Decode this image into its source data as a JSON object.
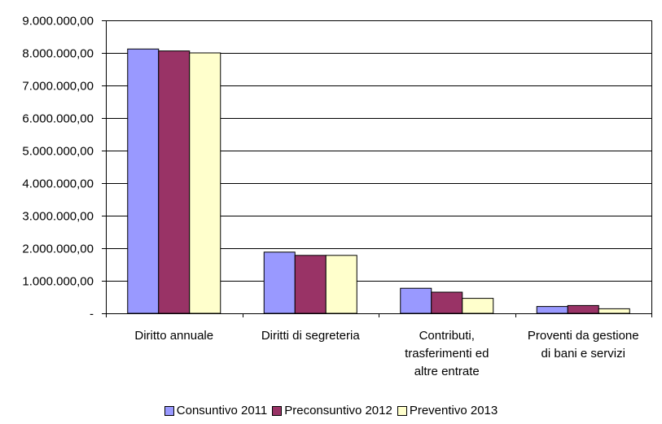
{
  "chart_data": {
    "type": "bar",
    "title": "",
    "xlabel": "",
    "ylabel": "",
    "categories": [
      [
        "Diritto annuale"
      ],
      [
        "Diritti di segreteria"
      ],
      [
        "Contributi,",
        "trasferimenti ed",
        "altre entrate"
      ],
      [
        "Proventi da gestione",
        "di bani e servizi"
      ]
    ],
    "series": [
      {
        "name": "Consuntivo 2011",
        "color": "#9999FF",
        "values": [
          8120000,
          1880000,
          770000,
          210000
        ]
      },
      {
        "name": "Preconsuntivo 2012",
        "color": "#993366",
        "values": [
          8060000,
          1780000,
          650000,
          240000
        ]
      },
      {
        "name": "Preventivo 2013",
        "color": "#FFFFCC",
        "values": [
          8000000,
          1780000,
          460000,
          140000
        ]
      }
    ],
    "ylim": [
      0,
      9000000
    ],
    "yticks": [
      {
        "value": 0,
        "label": "-"
      },
      {
        "value": 1000000,
        "label": "1.000.000,00"
      },
      {
        "value": 2000000,
        "label": "2.000.000,00"
      },
      {
        "value": 3000000,
        "label": "3.000.000,00"
      },
      {
        "value": 4000000,
        "label": "4.000.000,00"
      },
      {
        "value": 5000000,
        "label": "5.000.000,00"
      },
      {
        "value": 6000000,
        "label": "6.000.000,00"
      },
      {
        "value": 7000000,
        "label": "7.000.000,00"
      },
      {
        "value": 8000000,
        "label": "8.000.000,00"
      },
      {
        "value": 9000000,
        "label": "9.000.000,00"
      }
    ],
    "grid": true,
    "legend_position": "bottom"
  }
}
